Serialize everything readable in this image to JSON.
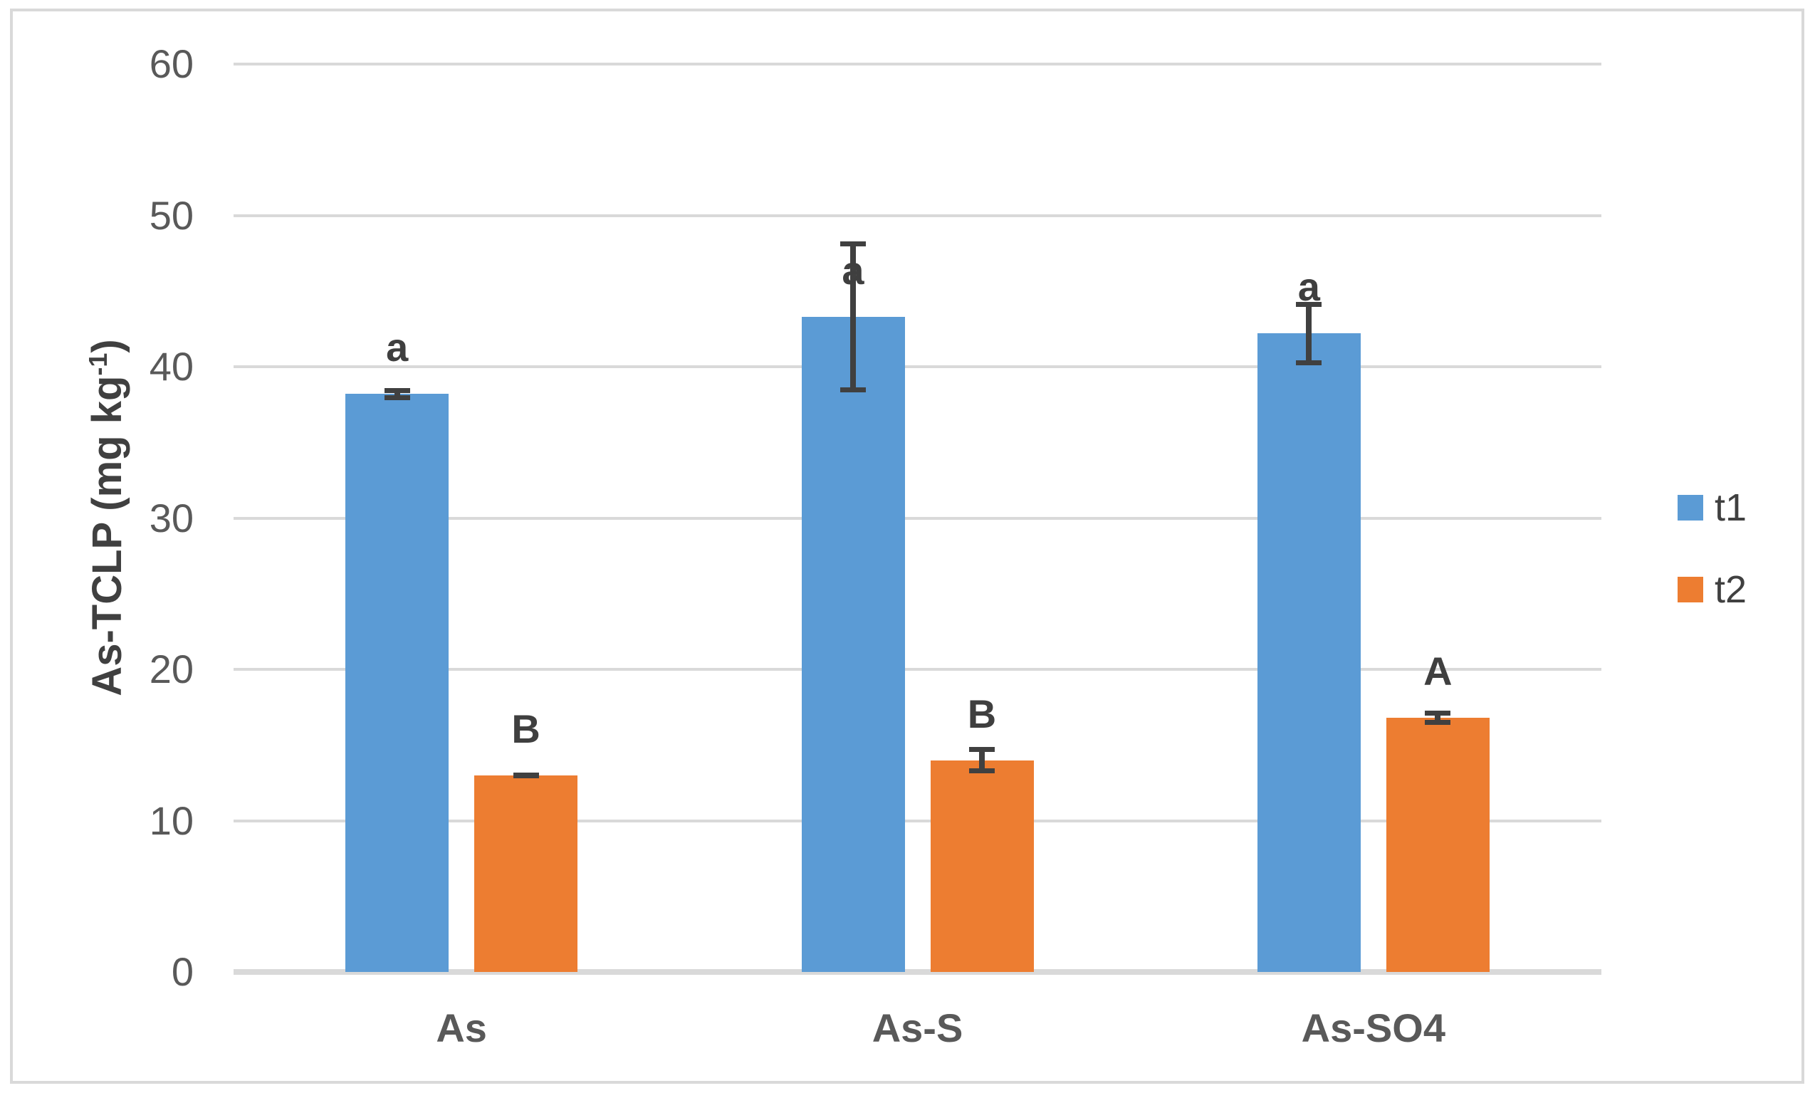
{
  "chart_data": {
    "type": "bar",
    "title": "",
    "ylabel_main": "As-TCLP (mg kg",
    "ylabel_sup": "-1",
    "ylabel_close": ")",
    "ylim": [
      0,
      60
    ],
    "yticks": [
      0,
      10,
      20,
      30,
      40,
      50,
      60
    ],
    "categories": [
      "As",
      "As-S",
      "As-SO4"
    ],
    "series": [
      {
        "name": "t1",
        "color": "#5B9BD5",
        "values": [
          38.2,
          43.3,
          42.2
        ],
        "errors": [
          0.4,
          5.0,
          2.1
        ],
        "sig_labels": [
          "a",
          "a",
          "a"
        ]
      },
      {
        "name": "t2",
        "color": "#ED7D31",
        "values": [
          13.0,
          14.0,
          16.8
        ],
        "errors": [
          0.15,
          0.85,
          0.45
        ],
        "sig_labels": [
          "B",
          "B",
          "A"
        ]
      }
    ],
    "legend_position": "right",
    "grid": true,
    "gridline_color": "#D9D9D9",
    "error_bar_color": "#404040",
    "axis_text_color": "#595959",
    "annotation_color": "#3F3F3F"
  }
}
